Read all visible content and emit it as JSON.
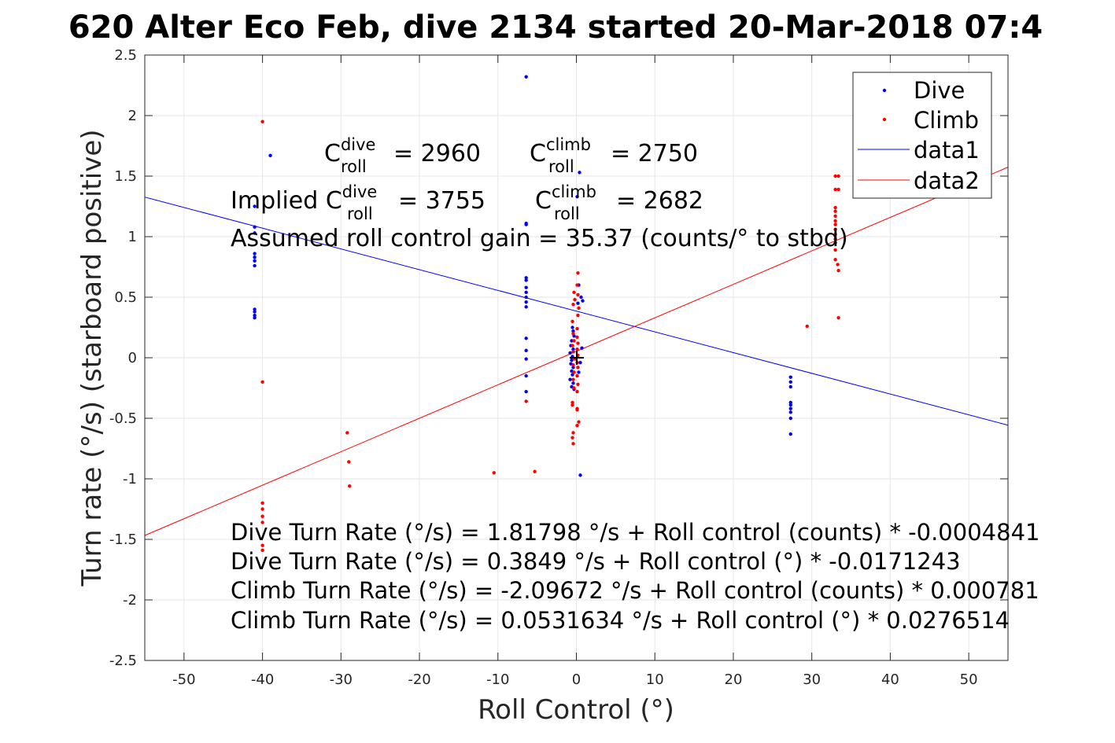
{
  "chart_data": {
    "type": "scatter",
    "title": "620 Alter Eco Feb, dive 2134 started 20-Mar-2018 07:4",
    "xlabel": "Roll Control (°)",
    "ylabel": "Turn rate (°/s) (starboard positive)",
    "xlim": [
      -55,
      55
    ],
    "ylim": [
      -2.5,
      2.5
    ],
    "x_ticks": [
      -50,
      -40,
      -30,
      -20,
      -10,
      0,
      10,
      20,
      30,
      40,
      50
    ],
    "y_ticks": [
      -2.5,
      -2,
      -1.5,
      -1,
      -0.5,
      0,
      0.5,
      1,
      1.5,
      2,
      2.5
    ],
    "x_tick_labels": [
      "-50",
      "-40",
      "-30",
      "-20",
      "-10",
      "0",
      "10",
      "20",
      "30",
      "40",
      "50"
    ],
    "y_tick_labels": [
      "-2.5",
      "-2",
      "-1.5",
      "-1",
      "-0.5",
      "0",
      "0.5",
      "1",
      "1.5",
      "2",
      "2.5"
    ],
    "grid": true,
    "legend_position": "top-right",
    "legend": [
      "Dive",
      "Climb",
      "data1",
      "data2"
    ],
    "colors": {
      "dive": "#0000ff",
      "climb": "#ff0000",
      "axes": "#262626",
      "grid": "#e6e6e6"
    },
    "series": [
      {
        "name": "Dive",
        "kind": "scatter",
        "color": "#0000ff",
        "points": [
          [
            -41,
            1.25
          ],
          [
            -41,
            1.08
          ],
          [
            -41,
            1.03
          ],
          [
            -41,
            0.86
          ],
          [
            -41,
            0.83
          ],
          [
            -41,
            0.8
          ],
          [
            -41,
            0.76
          ],
          [
            -41,
            0.4
          ],
          [
            -41,
            0.38
          ],
          [
            -41,
            0.35
          ],
          [
            -41,
            0.33
          ],
          [
            -39,
            1.67
          ],
          [
            -6.4,
            2.32
          ],
          [
            -6.4,
            1.11
          ],
          [
            -6.4,
            1.1
          ],
          [
            -6.4,
            0.66
          ],
          [
            -6.4,
            0.64
          ],
          [
            -6.4,
            0.58
          ],
          [
            -6.4,
            0.54
          ],
          [
            -6.4,
            0.5
          ],
          [
            -6.4,
            0.46
          ],
          [
            -6.4,
            0.42
          ],
          [
            -6.4,
            0.16
          ],
          [
            -6.4,
            0.06
          ],
          [
            -6.4,
            -0.01
          ],
          [
            -6.4,
            -0.15
          ],
          [
            -6.4,
            -0.28
          ],
          [
            0.4,
            1.53
          ],
          [
            0.1,
            1.33
          ],
          [
            0.3,
            0.6
          ],
          [
            0.6,
            0.5
          ],
          [
            0.8,
            0.47
          ],
          [
            0.2,
            0.45
          ],
          [
            -0.5,
            0.25
          ],
          [
            -0.4,
            0.22
          ],
          [
            -0.3,
            0.18
          ],
          [
            -0.6,
            0.14
          ],
          [
            -0.7,
            0.1
          ],
          [
            -0.4,
            0.07
          ],
          [
            -0.8,
            0.04
          ],
          [
            -0.5,
            0.01
          ],
          [
            -0.6,
            -0.02
          ],
          [
            -0.7,
            -0.05
          ],
          [
            -0.4,
            -0.08
          ],
          [
            -0.6,
            -0.11
          ],
          [
            -0.5,
            -0.14
          ],
          [
            -0.8,
            -0.18
          ],
          [
            -0.4,
            -0.21
          ],
          [
            -0.6,
            -0.24
          ],
          [
            -0.3,
            -0.26
          ],
          [
            0.7,
            0.08
          ],
          [
            0.5,
            -0.04
          ],
          [
            0.3,
            -0.12
          ],
          [
            0.5,
            -0.97
          ],
          [
            27.3,
            -0.16
          ],
          [
            27.3,
            -0.2
          ],
          [
            27.3,
            -0.24
          ],
          [
            27.3,
            -0.37
          ],
          [
            27.3,
            -0.39
          ],
          [
            27.3,
            -0.42
          ],
          [
            27.3,
            -0.45
          ],
          [
            27.3,
            -0.5
          ],
          [
            27.3,
            -0.63
          ]
        ]
      },
      {
        "name": "Climb",
        "kind": "scatter",
        "color": "#ff0000",
        "points": [
          [
            -40,
            1.95
          ],
          [
            -40,
            -0.2
          ],
          [
            -40,
            -1.2
          ],
          [
            -40,
            -1.25
          ],
          [
            -40,
            -1.31
          ],
          [
            -40,
            -1.36
          ],
          [
            -40,
            -1.55
          ],
          [
            -40,
            -1.59
          ],
          [
            -29.2,
            -0.62
          ],
          [
            -29,
            -0.86
          ],
          [
            -28.9,
            -1.06
          ],
          [
            -10.5,
            -0.95
          ],
          [
            -6.4,
            -0.36
          ],
          [
            -5.3,
            -0.94
          ],
          [
            0.2,
            0.7
          ],
          [
            0.1,
            0.6
          ],
          [
            -0.3,
            0.54
          ],
          [
            0.2,
            0.52
          ],
          [
            -0.2,
            0.48
          ],
          [
            -0.4,
            0.44
          ],
          [
            0.3,
            0.41
          ],
          [
            0.2,
            0.35
          ],
          [
            -0.5,
            0.3
          ],
          [
            0.1,
            0.24
          ],
          [
            -0.4,
            0.2
          ],
          [
            0.1,
            0.17
          ],
          [
            -0.3,
            0.14
          ],
          [
            0.2,
            0.12
          ],
          [
            -0.5,
            0.1
          ],
          [
            0.1,
            0.07
          ],
          [
            -0.4,
            0.05
          ],
          [
            0.2,
            0.02
          ],
          [
            -0.2,
            -0.01
          ],
          [
            0.1,
            -0.04
          ],
          [
            -0.4,
            -0.06
          ],
          [
            0.2,
            -0.08
          ],
          [
            -0.3,
            -0.12
          ],
          [
            0.1,
            -0.15
          ],
          [
            -0.4,
            -0.18
          ],
          [
            0.2,
            -0.22
          ],
          [
            -0.3,
            -0.25
          ],
          [
            0.1,
            -0.28
          ],
          [
            -0.5,
            -0.37
          ],
          [
            -0.5,
            -0.39
          ],
          [
            0.1,
            -0.42
          ],
          [
            0.1,
            -0.43
          ],
          [
            0.3,
            -0.53
          ],
          [
            0.1,
            -0.56
          ],
          [
            -0.4,
            -0.62
          ],
          [
            -0.5,
            -0.66
          ],
          [
            -0.4,
            -0.71
          ],
          [
            29.4,
            0.26
          ],
          [
            33.4,
            0.33
          ],
          [
            33,
            1.5
          ],
          [
            33.4,
            1.5
          ],
          [
            33,
            1.39
          ],
          [
            33.4,
            1.39
          ],
          [
            33,
            1.24
          ],
          [
            33,
            1.21
          ],
          [
            33,
            1.17
          ],
          [
            33,
            1.13
          ],
          [
            33,
            1.1
          ],
          [
            33,
            1.06
          ],
          [
            33,
            1.02
          ],
          [
            33,
            0.98
          ],
          [
            33,
            0.95
          ],
          [
            33,
            0.89
          ],
          [
            33,
            0.81
          ],
          [
            33.3,
            0.77
          ],
          [
            33.4,
            0.72
          ]
        ]
      },
      {
        "name": "data1",
        "kind": "line",
        "color": "#0000ff",
        "x": [
          -55,
          55
        ],
        "y": [
          1.3267,
          -0.5569
        ]
      },
      {
        "name": "data2",
        "kind": "line",
        "color": "#ff0000",
        "x": [
          -55,
          55
        ],
        "y": [
          -1.4676,
          1.574
        ]
      }
    ],
    "annotations": {
      "c_dive_label": "C",
      "c_dive_sup": "dive",
      "c_dive_sub": "roll",
      "c_dive_value": "= 2960",
      "c_climb_label": "C",
      "c_climb_sup": "climb",
      "c_climb_sub": "roll",
      "c_climb_value": "= 2750",
      "implied_prefix": "Implied C",
      "implied_dive_sup": "dive",
      "implied_dive_sub": "roll",
      "implied_dive_value": "= 3755",
      "implied_climb_label": "C",
      "implied_climb_sup": "climb",
      "implied_climb_sub": "roll",
      "implied_climb_value": "= 2682",
      "gain_line": "Assumed roll control gain = 35.37 (counts/° to stbd)",
      "fit_lines": [
        "Dive Turn Rate (°/s) = 1.81798 °/s + Roll control (counts) * -0.0004841",
        "Dive Turn Rate (°/s) = 0.3849 °/s + Roll control (°) * -0.0171243",
        "Climb Turn Rate (°/s) = -2.09672 °/s + Roll control (counts) * 0.000781",
        "Climb Turn Rate (°/s) = 0.0531634 °/s + Roll control (°) * 0.0276514"
      ]
    }
  }
}
